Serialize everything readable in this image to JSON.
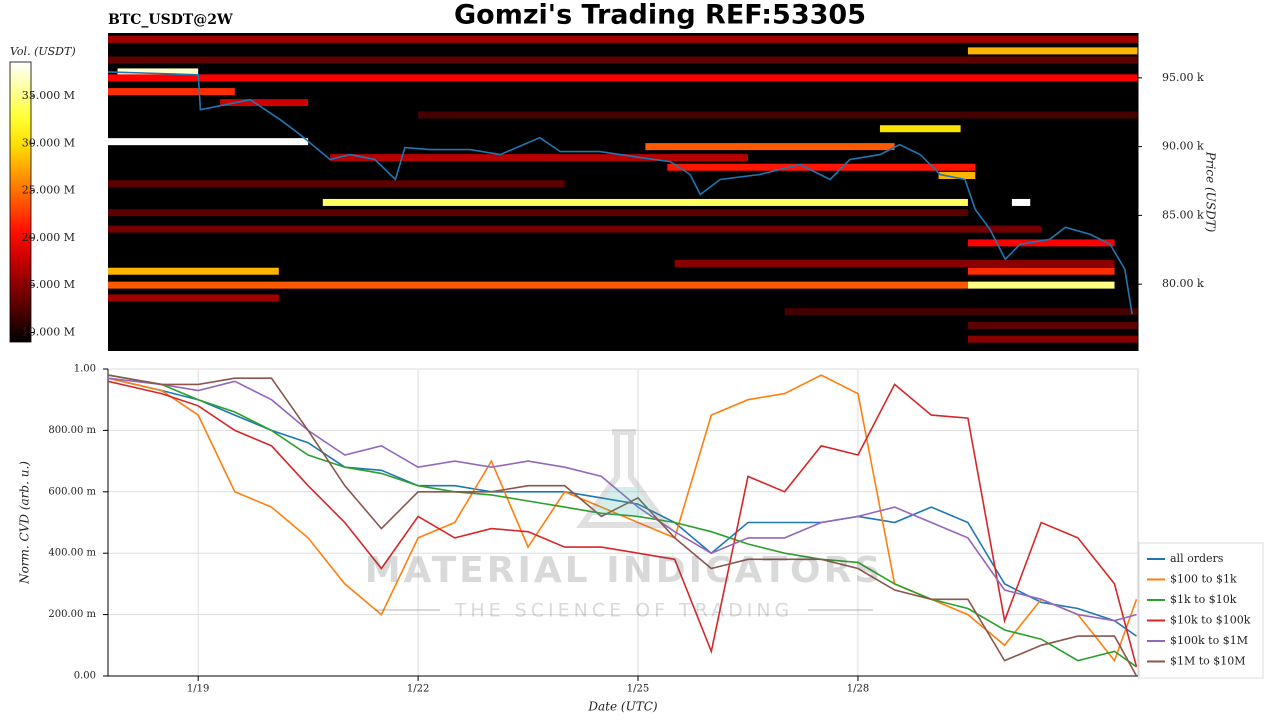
{
  "title": "Gomzi's Trading REF:53305",
  "watermark": {
    "title": "MATERIAL INDICATORS",
    "subtitle": "THE SCIENCE OF TRADING"
  },
  "chart_data": [
    {
      "type": "heatmap",
      "title": "BTC_USDT@2W",
      "ylabel": "Price (USDT)",
      "xlim": [
        17.77,
        31.82
      ],
      "ylim": [
        75140,
        98260
      ],
      "yticks": [
        {
          "value": 80000,
          "label": "80.00 k"
        },
        {
          "value": 85000,
          "label": "85.00 k"
        },
        {
          "value": 90000,
          "label": "90.00 k"
        },
        {
          "value": 95000,
          "label": "95.00 k"
        }
      ],
      "colormap": "hot",
      "colorbar": {
        "label": "Vol. (USDT)",
        "clim": [
          9000000,
          38600000
        ],
        "ticks": [
          {
            "value": 10000000,
            "label": "10.000 M"
          },
          {
            "value": 15000000,
            "label": "15.000 M"
          },
          {
            "value": 20000000,
            "label": "20.000 M"
          },
          {
            "value": 25000000,
            "label": "25.000 M"
          },
          {
            "value": 30000000,
            "label": "30.000 M"
          },
          {
            "value": 35000000,
            "label": "35.000 M"
          }
        ]
      },
      "bands": [
        {
          "price": 97800,
          "start": 17.77,
          "end": 31.82,
          "value": 16000000
        },
        {
          "price": 96960,
          "start": 29.5,
          "end": 31.82,
          "value": 28000000
        },
        {
          "price": 96300,
          "start": 17.77,
          "end": 31.82,
          "value": 13000000
        },
        {
          "price": 95430,
          "start": 17.9,
          "end": 19.0,
          "value": 37000000
        },
        {
          "price": 95000,
          "start": 17.77,
          "end": 31.82,
          "value": 20000000
        },
        {
          "price": 94000,
          "start": 17.77,
          "end": 19.5,
          "value": 22000000
        },
        {
          "price": 93200,
          "start": 19.3,
          "end": 20.5,
          "value": 18000000
        },
        {
          "price": 92300,
          "start": 22.0,
          "end": 31.82,
          "value": 12000000
        },
        {
          "price": 91300,
          "start": 28.3,
          "end": 29.4,
          "value": 30000000
        },
        {
          "price": 90360,
          "start": 17.77,
          "end": 20.5,
          "value": 38600000
        },
        {
          "price": 90000,
          "start": 25.1,
          "end": 28.5,
          "value": 24000000
        },
        {
          "price": 89200,
          "start": 20.8,
          "end": 26.5,
          "value": 17000000
        },
        {
          "price": 88500,
          "start": 25.4,
          "end": 29.6,
          "value": 21000000
        },
        {
          "price": 87900,
          "start": 29.1,
          "end": 29.6,
          "value": 28000000
        },
        {
          "price": 87300,
          "start": 17.77,
          "end": 24.0,
          "value": 13000000
        },
        {
          "price": 85940,
          "start": 20.7,
          "end": 29.5,
          "value": 34000000
        },
        {
          "price": 85940,
          "start": 30.1,
          "end": 30.35,
          "value": 38600000
        },
        {
          "price": 85200,
          "start": 17.77,
          "end": 29.5,
          "value": 13000000
        },
        {
          "price": 84000,
          "start": 17.77,
          "end": 30.5,
          "value": 14000000
        },
        {
          "price": 83000,
          "start": 29.5,
          "end": 31.5,
          "value": 20000000
        },
        {
          "price": 81500,
          "start": 25.5,
          "end": 31.5,
          "value": 15000000
        },
        {
          "price": 80940,
          "start": 17.77,
          "end": 20.1,
          "value": 28000000
        },
        {
          "price": 80940,
          "start": 29.5,
          "end": 31.5,
          "value": 22000000
        },
        {
          "price": 79930,
          "start": 17.77,
          "end": 29.5,
          "value": 24000000
        },
        {
          "price": 79930,
          "start": 29.5,
          "end": 31.5,
          "value": 35000000
        },
        {
          "price": 79000,
          "start": 17.77,
          "end": 20.1,
          "value": 16000000
        },
        {
          "price": 78000,
          "start": 27.0,
          "end": 31.82,
          "value": 12000000
        },
        {
          "price": 77000,
          "start": 29.5,
          "end": 31.82,
          "value": 13000000
        },
        {
          "price": 76000,
          "start": 29.5,
          "end": 31.82,
          "value": 15000000
        }
      ],
      "line": {
        "color": "#1f77b4",
        "x": [
          17.77,
          19.0,
          19.03,
          19.71,
          20.12,
          20.39,
          20.8,
          21.07,
          21.41,
          21.69,
          21.82,
          22.16,
          22.71,
          23.12,
          23.66,
          23.94,
          24.48,
          25.03,
          25.44,
          25.71,
          25.85,
          26.12,
          26.66,
          27.21,
          27.62,
          27.89,
          28.3,
          28.57,
          28.85,
          29.12,
          29.46,
          29.6,
          29.8,
          30.01,
          30.21,
          30.62,
          30.83,
          31.17,
          31.44,
          31.64,
          31.74
        ],
        "values": [
          95430,
          95220,
          92680,
          93410,
          91960,
          90870,
          89060,
          89420,
          89060,
          87610,
          89930,
          89780,
          89780,
          89420,
          90650,
          89640,
          89640,
          89200,
          88910,
          87970,
          86520,
          87610,
          87970,
          88700,
          87610,
          89060,
          89420,
          90140,
          89420,
          87970,
          87610,
          85430,
          83990,
          81810,
          82900,
          83260,
          84130,
          83620,
          82900,
          81090,
          77820
        ]
      }
    },
    {
      "type": "line",
      "xlabel": "Date (UTC)",
      "ylabel": "Norm. CVD (arb. u.)",
      "xlim": [
        17.77,
        31.82
      ],
      "ylim": [
        0,
        1
      ],
      "grid": true,
      "legend": "lower right",
      "xticks": [
        {
          "value": 19,
          "label": "1/19"
        },
        {
          "value": 22,
          "label": "1/22"
        },
        {
          "value": 25,
          "label": "1/25"
        },
        {
          "value": 28,
          "label": "1/28"
        }
      ],
      "yticks": [
        {
          "value": 0,
          "label": "0.00"
        },
        {
          "value": 0.2,
          "label": "200.00 m"
        },
        {
          "value": 0.4,
          "label": "400.00 m"
        },
        {
          "value": 0.6,
          "label": "600.00 m"
        },
        {
          "value": 0.8,
          "label": "800.00 m"
        },
        {
          "value": 1,
          "label": "1.00"
        }
      ],
      "x": [
        17.77,
        18.5,
        19.0,
        19.5,
        20.0,
        20.5,
        21.0,
        21.5,
        22.0,
        22.5,
        23.0,
        23.5,
        24.0,
        24.5,
        25.0,
        25.5,
        26.0,
        26.5,
        27.0,
        27.5,
        28.0,
        28.5,
        29.0,
        29.5,
        30.0,
        30.5,
        31.0,
        31.5,
        31.8
      ],
      "series": [
        {
          "name": "all orders",
          "color": "#1f77b4",
          "values": [
            0.97,
            0.93,
            0.9,
            0.85,
            0.8,
            0.76,
            0.68,
            0.67,
            0.62,
            0.62,
            0.6,
            0.6,
            0.6,
            0.58,
            0.56,
            0.5,
            0.4,
            0.5,
            0.5,
            0.5,
            0.52,
            0.5,
            0.55,
            0.5,
            0.3,
            0.24,
            0.22,
            0.18,
            0.13
          ]
        },
        {
          "name": "$100 to $1k",
          "color": "#ff7f0e",
          "values": [
            0.97,
            0.93,
            0.85,
            0.6,
            0.55,
            0.45,
            0.3,
            0.2,
            0.45,
            0.5,
            0.7,
            0.42,
            0.6,
            0.55,
            0.5,
            0.45,
            0.85,
            0.9,
            0.92,
            0.98,
            0.92,
            0.3,
            0.25,
            0.2,
            0.1,
            0.25,
            0.2,
            0.05,
            0.25
          ]
        },
        {
          "name": "$1k to $10k",
          "color": "#2ca02c",
          "values": [
            0.98,
            0.95,
            0.9,
            0.86,
            0.8,
            0.72,
            0.68,
            0.66,
            0.62,
            0.6,
            0.59,
            0.57,
            0.55,
            0.53,
            0.52,
            0.5,
            0.47,
            0.43,
            0.4,
            0.38,
            0.37,
            0.3,
            0.25,
            0.22,
            0.15,
            0.12,
            0.05,
            0.08,
            0.03
          ]
        },
        {
          "name": "$10k to $100k",
          "color": "#d62728",
          "values": [
            0.96,
            0.92,
            0.88,
            0.8,
            0.75,
            0.62,
            0.5,
            0.35,
            0.52,
            0.45,
            0.48,
            0.47,
            0.42,
            0.42,
            0.4,
            0.38,
            0.08,
            0.65,
            0.6,
            0.75,
            0.72,
            0.95,
            0.85,
            0.84,
            0.18,
            0.5,
            0.45,
            0.3,
            0.03
          ]
        },
        {
          "name": "$100k to $1M",
          "color": "#9467bd",
          "values": [
            0.97,
            0.95,
            0.93,
            0.96,
            0.9,
            0.8,
            0.72,
            0.75,
            0.68,
            0.7,
            0.68,
            0.7,
            0.68,
            0.65,
            0.55,
            0.47,
            0.4,
            0.45,
            0.45,
            0.5,
            0.52,
            0.55,
            0.5,
            0.45,
            0.28,
            0.25,
            0.2,
            0.18,
            0.2
          ]
        },
        {
          "name": "$1M to $10M",
          "color": "#8c564b",
          "values": [
            0.98,
            0.95,
            0.95,
            0.97,
            0.97,
            0.8,
            0.62,
            0.48,
            0.6,
            0.6,
            0.6,
            0.62,
            0.62,
            0.52,
            0.58,
            0.45,
            0.35,
            0.38,
            0.38,
            0.38,
            0.35,
            0.28,
            0.25,
            0.25,
            0.05,
            0.1,
            0.13,
            0.13,
            0.0
          ]
        }
      ]
    }
  ]
}
